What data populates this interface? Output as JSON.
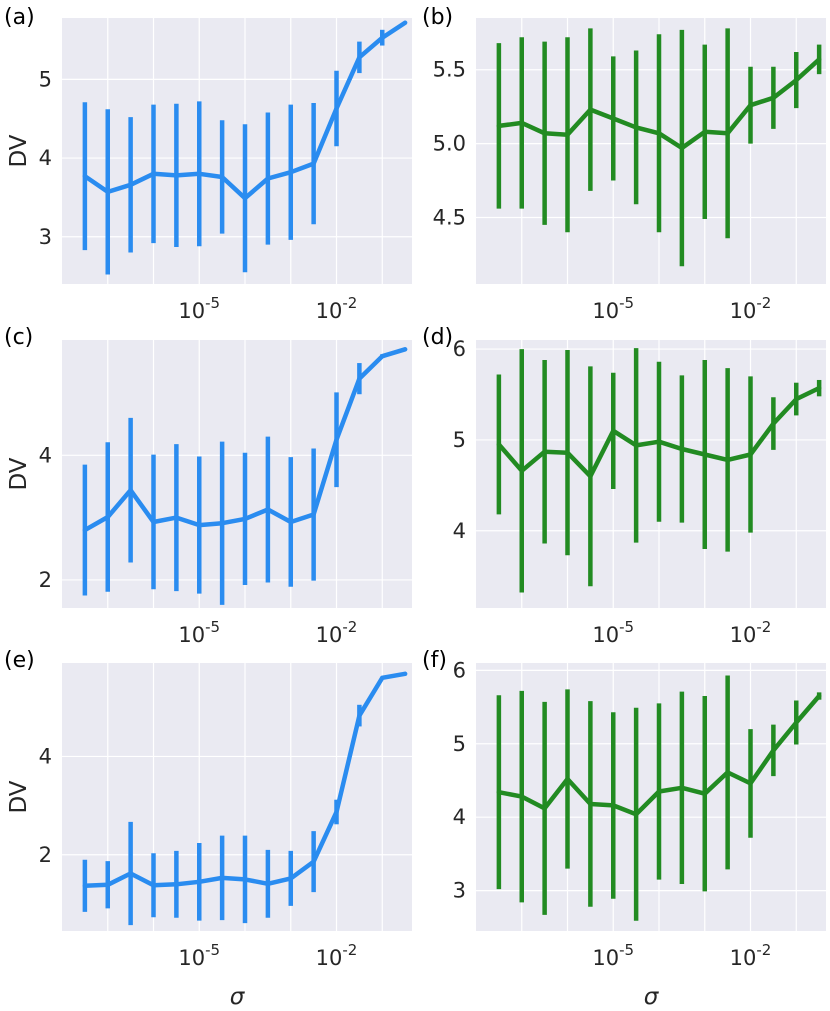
{
  "figure": {
    "x_tick_labels": [
      "10",
      "10"
    ],
    "x_tick_exponents": [
      "-5",
      "-2"
    ]
  },
  "chart_data": [
    {
      "type": "line",
      "panel": "(a)",
      "color": "#2a8cf0",
      "xlabel": "",
      "ylabel": "DV",
      "x_scale": "log",
      "x_exponents": [
        -7,
        -6,
        -5,
        -4,
        -3,
        -2,
        -1
      ],
      "y_ticks": [
        3,
        4,
        5
      ],
      "ylim": [
        2.4,
        5.78
      ],
      "x": [
        -7.5,
        -7.0,
        -6.5,
        -6.0,
        -5.5,
        -5.0,
        -4.5,
        -4.0,
        -3.5,
        -3.0,
        -2.5,
        -2.0,
        -1.5,
        -1.0,
        -0.5
      ],
      "y": [
        3.77,
        3.57,
        3.66,
        3.8,
        3.78,
        3.8,
        3.76,
        3.49,
        3.74,
        3.82,
        3.93,
        4.63,
        5.28,
        5.53,
        5.72
      ],
      "err": [
        0.94,
        1.05,
        0.86,
        0.88,
        0.91,
        0.92,
        0.72,
        0.94,
        0.84,
        0.86,
        0.77,
        0.48,
        0.2,
        0.1,
        0.0
      ]
    },
    {
      "type": "line",
      "panel": "(b)",
      "color": "#228b22",
      "xlabel": "",
      "ylabel": "",
      "x_scale": "log",
      "x_exponents": [
        -7,
        -6,
        -5,
        -4,
        -3,
        -2,
        -1
      ],
      "y_ticks": [
        4.5,
        5.0,
        5.5
      ],
      "y_tick_labels": [
        "4.5",
        "5.0",
        "5.5"
      ],
      "ylim": [
        4.05,
        5.85
      ],
      "x": [
        -7.5,
        -7.0,
        -6.5,
        -6.0,
        -5.5,
        -5.0,
        -4.5,
        -4.0,
        -3.5,
        -3.0,
        -2.5,
        -2.0,
        -1.5,
        -1.0,
        -0.5
      ],
      "y": [
        5.12,
        5.14,
        5.07,
        5.06,
        5.23,
        5.17,
        5.11,
        5.07,
        4.97,
        5.08,
        5.07,
        5.26,
        5.31,
        5.43,
        5.57
      ],
      "err": [
        0.56,
        0.58,
        0.62,
        0.66,
        0.55,
        0.42,
        0.52,
        0.67,
        0.8,
        0.59,
        0.71,
        0.26,
        0.21,
        0.19,
        0.1
      ]
    },
    {
      "type": "line",
      "panel": "(c)",
      "color": "#2a8cf0",
      "xlabel": "",
      "ylabel": "DV",
      "x_scale": "log",
      "x_exponents": [
        -7,
        -6,
        -5,
        -4,
        -3,
        -2,
        -1
      ],
      "y_ticks": [
        2,
        4
      ],
      "ylim": [
        1.55,
        5.85
      ],
      "x": [
        -7.5,
        -7.0,
        -6.5,
        -6.0,
        -5.5,
        -5.0,
        -4.5,
        -4.0,
        -3.5,
        -3.0,
        -2.5,
        -2.0,
        -1.5,
        -1.0,
        -0.5
      ],
      "y": [
        2.8,
        3.01,
        3.44,
        2.93,
        3.0,
        2.88,
        2.91,
        2.98,
        3.13,
        2.93,
        3.05,
        4.25,
        5.23,
        5.59,
        5.7
      ],
      "err": [
        1.05,
        1.2,
        1.16,
        1.08,
        1.18,
        1.1,
        1.31,
        1.06,
        1.17,
        1.04,
        1.06,
        0.76,
        0.25,
        0.03,
        0.0
      ]
    },
    {
      "type": "line",
      "panel": "(d)",
      "color": "#228b22",
      "xlabel": "",
      "ylabel": "",
      "x_scale": "log",
      "x_exponents": [
        -7,
        -6,
        -5,
        -4,
        -3,
        -2,
        -1
      ],
      "y_ticks": [
        4,
        5,
        6
      ],
      "ylim": [
        3.15,
        6.1
      ],
      "x": [
        -7.5,
        -7.0,
        -6.5,
        -6.0,
        -5.5,
        -5.0,
        -4.5,
        -4.0,
        -3.5,
        -3.0,
        -2.5,
        -2.0,
        -1.5,
        -1.0,
        -0.5
      ],
      "y": [
        4.95,
        4.66,
        4.87,
        4.86,
        4.6,
        5.1,
        4.94,
        4.98,
        4.9,
        4.84,
        4.78,
        4.84,
        5.18,
        5.45,
        5.57
      ],
      "err": [
        0.77,
        1.34,
        1.01,
        1.13,
        1.21,
        0.64,
        1.07,
        0.88,
        0.81,
        1.04,
        1.01,
        0.86,
        0.29,
        0.18,
        0.09
      ]
    },
    {
      "type": "line",
      "panel": "(e)",
      "color": "#2a8cf0",
      "xlabel": "σ",
      "ylabel": "DV",
      "x_scale": "log",
      "x_exponents": [
        -7,
        -6,
        -5,
        -4,
        -3,
        -2,
        -1
      ],
      "y_ticks": [
        2,
        4
      ],
      "ylim": [
        0.45,
        5.9
      ],
      "x": [
        -7.5,
        -7.0,
        -6.5,
        -6.0,
        -5.5,
        -5.0,
        -4.5,
        -4.0,
        -3.5,
        -3.0,
        -2.5,
        -2.0,
        -1.5,
        -1.0,
        -0.5
      ],
      "y": [
        1.37,
        1.39,
        1.62,
        1.38,
        1.4,
        1.45,
        1.53,
        1.5,
        1.41,
        1.52,
        1.86,
        2.87,
        4.83,
        5.6,
        5.68
      ],
      "err": [
        0.53,
        0.48,
        1.05,
        0.65,
        0.68,
        0.79,
        0.86,
        0.89,
        0.69,
        0.56,
        0.62,
        0.25,
        0.22,
        0.0,
        0.0
      ]
    },
    {
      "type": "line",
      "panel": "(f)",
      "color": "#228b22",
      "xlabel": "σ",
      "ylabel": "",
      "x_scale": "log",
      "x_exponents": [
        -7,
        -6,
        -5,
        -4,
        -3,
        -2,
        -1
      ],
      "y_ticks": [
        3,
        4,
        5,
        6
      ],
      "ylim": [
        2.45,
        6.1
      ],
      "x": [
        -7.5,
        -7.0,
        -6.5,
        -6.0,
        -5.5,
        -5.0,
        -4.5,
        -4.0,
        -3.5,
        -3.0,
        -2.5,
        -2.0,
        -1.5,
        -1.0,
        -0.5
      ],
      "y": [
        4.34,
        4.28,
        4.12,
        4.52,
        4.18,
        4.16,
        4.04,
        4.35,
        4.4,
        4.32,
        4.61,
        4.46,
        4.91,
        5.29,
        5.65
      ],
      "err": [
        1.32,
        1.44,
        1.45,
        1.22,
        1.4,
        1.27,
        1.45,
        1.2,
        1.31,
        1.33,
        1.32,
        0.74,
        0.35,
        0.3,
        0.05
      ]
    }
  ]
}
